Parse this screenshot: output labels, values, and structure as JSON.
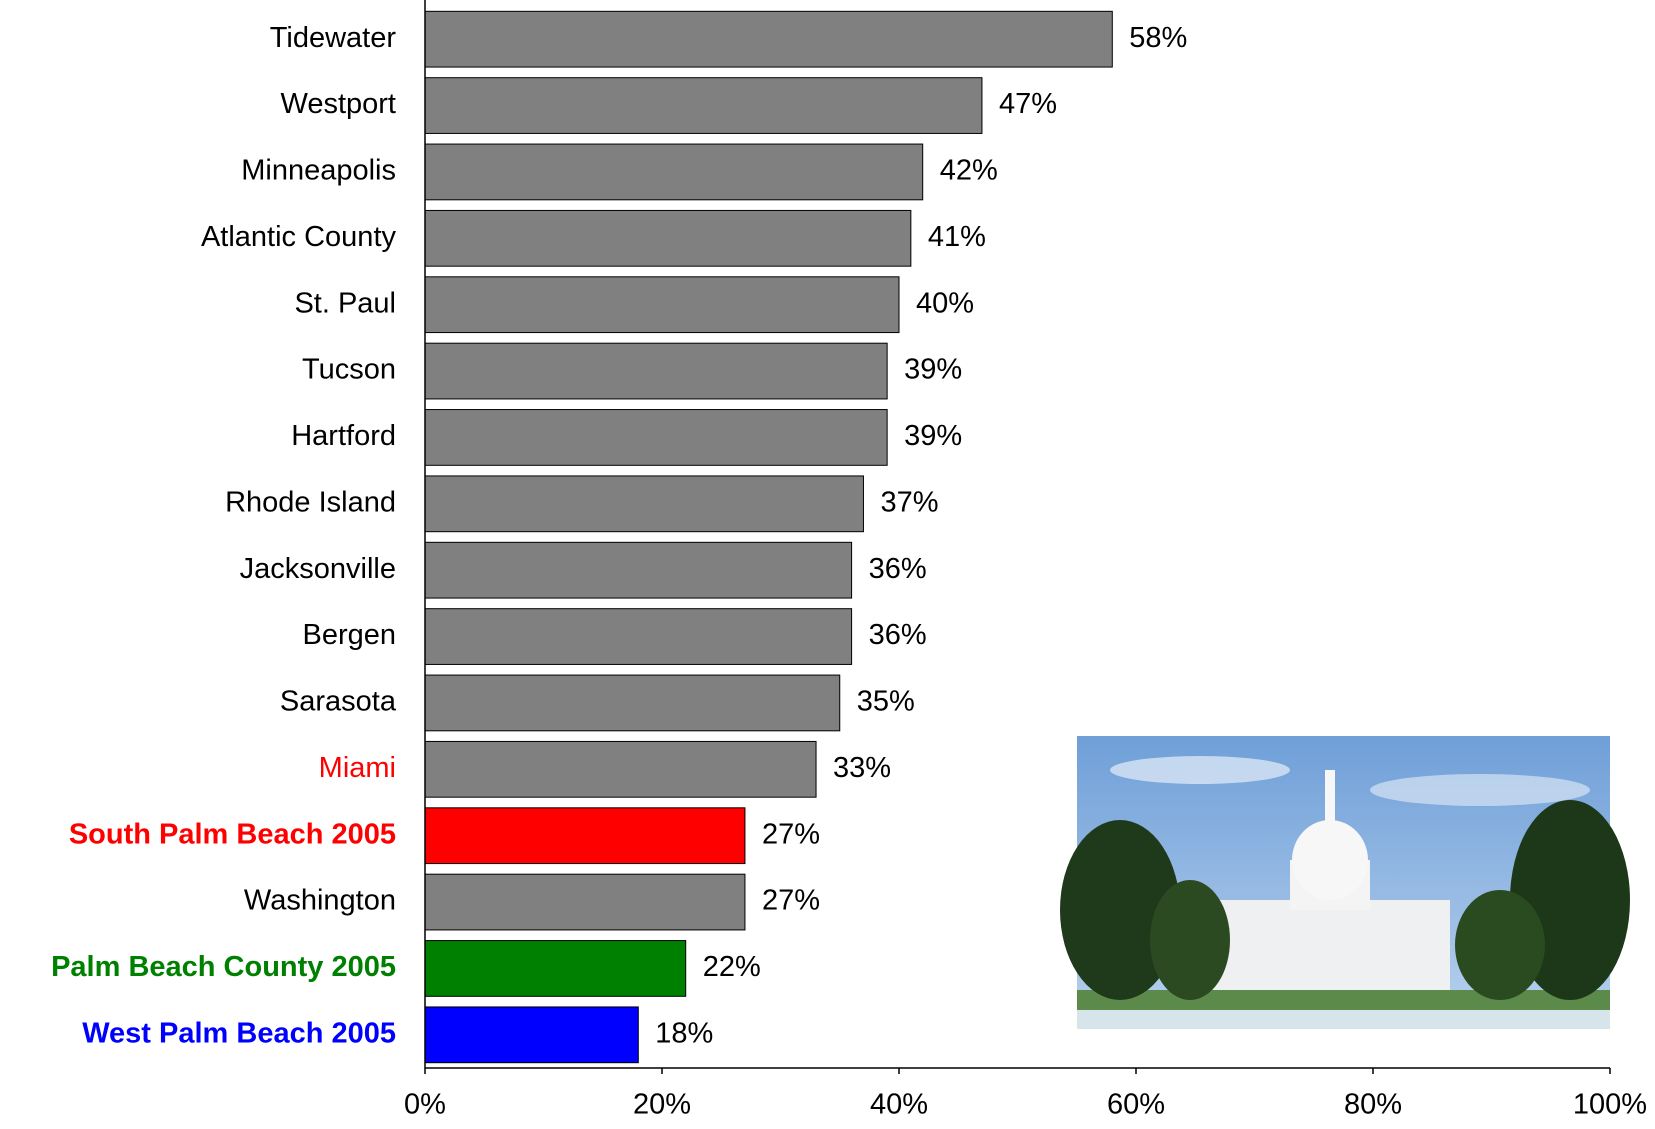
{
  "chart_data": {
    "type": "bar",
    "orientation": "horizontal",
    "categories": [
      "Tidewater",
      "Westport",
      "Minneapolis",
      "Atlantic County",
      "St. Paul",
      "Tucson",
      "Hartford",
      "Rhode Island",
      "Jacksonville",
      "Bergen",
      "Sarasota",
      "Miami",
      "South Palm Beach 2005",
      "Washington",
      "Palm Beach County 2005",
      "West Palm Beach 2005"
    ],
    "values": [
      58,
      47,
      42,
      41,
      40,
      39,
      39,
      37,
      36,
      36,
      35,
      33,
      27,
      27,
      22,
      18
    ],
    "value_labels": [
      "58%",
      "47%",
      "42%",
      "41%",
      "40%",
      "39%",
      "39%",
      "37%",
      "36%",
      "36%",
      "35%",
      "33%",
      "27%",
      "27%",
      "22%",
      "18%"
    ],
    "bar_colors": [
      "#808080",
      "#808080",
      "#808080",
      "#808080",
      "#808080",
      "#808080",
      "#808080",
      "#808080",
      "#808080",
      "#808080",
      "#808080",
      "#808080",
      "#ff0000",
      "#808080",
      "#008000",
      "#0000ff"
    ],
    "label_colors": [
      "#000000",
      "#000000",
      "#000000",
      "#000000",
      "#000000",
      "#000000",
      "#000000",
      "#000000",
      "#000000",
      "#000000",
      "#000000",
      "#ff0000",
      "#ff0000",
      "#000000",
      "#008000",
      "#0000ff"
    ],
    "label_bold": [
      false,
      false,
      false,
      false,
      false,
      false,
      false,
      false,
      false,
      false,
      false,
      false,
      true,
      false,
      true,
      true
    ],
    "xlim": [
      0,
      100
    ],
    "xticks": [
      {
        "value": 0,
        "label": "0%"
      },
      {
        "value": 20,
        "label": "20%"
      },
      {
        "value": 40,
        "label": "40%"
      },
      {
        "value": 60,
        "label": "60%"
      },
      {
        "value": 80,
        "label": "80%"
      },
      {
        "value": 100,
        "label": "100%"
      }
    ],
    "grid": false
  }
}
